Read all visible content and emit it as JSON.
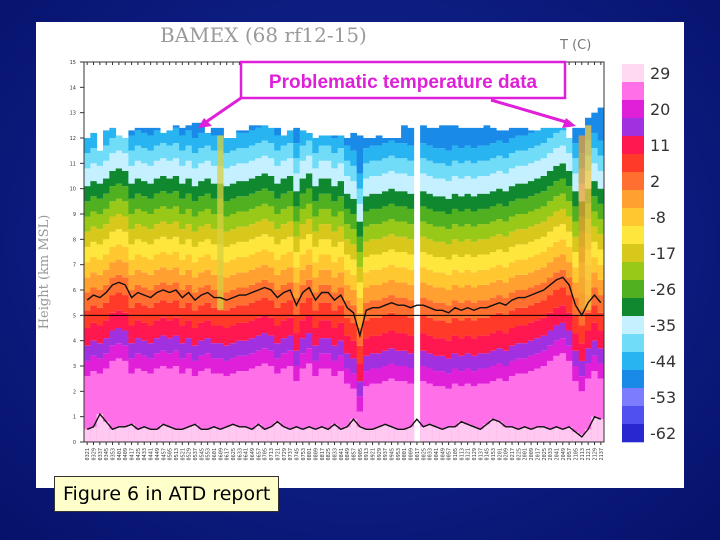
{
  "caption": "Figure 6 in ATD report",
  "chart_data": {
    "type": "heatmap",
    "title": "BAMEX (68 rf12-15)",
    "ylabel": "Height (km MSL)",
    "ylim": [
      0,
      15
    ],
    "yticks": [
      "0",
      "1",
      "2",
      "3",
      "4",
      "5",
      "6",
      "7",
      "8",
      "9",
      "10",
      "11",
      "12",
      "13",
      "14",
      "15"
    ],
    "colorbar_title": "T (C)",
    "colorbar_ticks": [
      "29",
      "20",
      "11",
      "2",
      "-8",
      "-17",
      "-26",
      "-35",
      "-44",
      "-53",
      "-62"
    ],
    "colorbar_colors": [
      "#ffd8f2",
      "#ff70e8",
      "#e020d8",
      "#a030e0",
      "#ff1850",
      "#ff3a28",
      "#ff7030",
      "#ffa030",
      "#ffc830",
      "#ffe63c",
      "#d8c81c",
      "#98c818",
      "#50b020",
      "#108830",
      "#c4f0ff",
      "#70dcf8",
      "#28b4f0",
      "#1a8ae8",
      "#7c7cff",
      "#5050f0",
      "#2828d0"
    ],
    "annotation": "Problematic temperature data",
    "grid": false,
    "x_tick_labels": [
      "0321",
      "0329",
      "0337",
      "0345",
      "0353",
      "0401",
      "0409",
      "0417",
      "0425",
      "0433",
      "0441",
      "0449",
      "0457",
      "0505",
      "0513",
      "0521",
      "0529",
      "0537",
      "0545",
      "0553",
      "0601",
      "0609",
      "0617",
      "0625",
      "0633",
      "0641",
      "0649",
      "0657",
      "0705",
      "0713",
      "0721",
      "0729",
      "0737",
      "0745",
      "0753",
      "0801",
      "0809",
      "0817",
      "0825",
      "0833",
      "0841",
      "0849",
      "0857",
      "0905",
      "0913",
      "0921",
      "0929",
      "0937",
      "0945",
      "0953",
      "0001",
      "0009",
      "0017",
      "0025",
      "0033",
      "0041",
      "0049",
      "0057",
      "0105",
      "0113",
      "0121",
      "0129",
      "0137",
      "0145",
      "0153",
      "0201",
      "0209",
      "0217",
      "0225",
      "2001",
      "2009",
      "2017",
      "2025",
      "2033",
      "2041",
      "2049",
      "2057",
      "2105",
      "2113",
      "2121",
      "2129",
      "2137"
    ],
    "series": [
      {
        "kind": "tropopause-line",
        "values": [
          5.6,
          5.8,
          5.7,
          5.9,
          6.2,
          6.3,
          6.2,
          5.7,
          5.9,
          5.8,
          5.7,
          5.9,
          6.0,
          5.9,
          6.0,
          5.7,
          5.9,
          5.6,
          5.8,
          5.9,
          5.7,
          5.7,
          5.6,
          5.7,
          5.8,
          5.8,
          5.9,
          6.0,
          6.1,
          6.0,
          5.7,
          5.9,
          6.0,
          5.4,
          5.9,
          6.1,
          5.6,
          5.9,
          5.9,
          5.6,
          5.8,
          5.3,
          5.1,
          4.2,
          5.2,
          5.3,
          5.3,
          5.4,
          5.5,
          5.4,
          5.4,
          5.3,
          5.4,
          5.4,
          5.3,
          5.2,
          5.2,
          5.1,
          5.3,
          5.2,
          5.3,
          5.2,
          5.3,
          5.3,
          5.4,
          5.5,
          5.4,
          5.6,
          5.7,
          5.7,
          5.8,
          5.9,
          6.0,
          6.2,
          6.4,
          6.5,
          6.2,
          5.4,
          5.0,
          5.5,
          5.8,
          5.5
        ]
      },
      {
        "kind": "lower-line",
        "values": [
          0.5,
          0.6,
          1.1,
          0.8,
          0.5,
          0.6,
          0.6,
          0.7,
          0.5,
          0.6,
          0.5,
          0.5,
          0.7,
          0.6,
          0.5,
          0.5,
          0.6,
          0.7,
          0.5,
          0.5,
          0.6,
          0.5,
          0.6,
          0.7,
          0.6,
          0.6,
          0.5,
          0.7,
          0.5,
          0.6,
          0.8,
          0.6,
          0.5,
          0.6,
          0.5,
          0.6,
          0.5,
          0.6,
          0.5,
          0.7,
          0.5,
          0.6,
          0.9,
          0.6,
          0.5,
          0.5,
          0.6,
          0.7,
          0.6,
          0.5,
          0.5,
          0.6,
          0.9,
          0.6,
          0.7,
          0.6,
          0.5,
          0.6,
          0.6,
          0.8,
          0.7,
          0.6,
          0.5,
          0.7,
          0.9,
          0.8,
          0.6,
          0.6,
          0.5,
          0.6,
          0.5,
          0.6,
          0.6,
          0.5,
          0.6,
          0.5,
          0.6,
          0.4,
          0.2,
          0.5,
          1.0,
          0.9
        ]
      },
      {
        "kind": "column-top",
        "values": [
          12.0,
          12.2,
          11.5,
          12.3,
          12.4,
          12.1,
          12.0,
          12.3,
          12.4,
          12.4,
          12.4,
          12.4,
          12.2,
          12.3,
          12.5,
          12.4,
          12.5,
          12.6,
          12.6,
          12.2,
          12.4,
          12.4,
          12.0,
          12.0,
          12.3,
          12.3,
          12.5,
          12.5,
          12.5,
          12.4,
          12.4,
          12.1,
          12.3,
          12.4,
          12.3,
          12.2,
          12.0,
          12.1,
          12.1,
          12.1,
          12.1,
          12.0,
          12.2,
          12.1,
          12.0,
          12.0,
          12.1,
          12.0,
          12.0,
          12.0,
          12.5,
          12.4,
          12.5,
          12.5,
          12.4,
          12.4,
          12.5,
          12.5,
          12.5,
          12.4,
          12.4,
          12.4,
          12.4,
          12.5,
          12.4,
          12.3,
          12.3,
          12.4,
          12.4,
          12.4,
          12.3,
          12.3,
          12.4,
          12.4,
          12.4,
          12.4,
          12.0,
          12.4,
          12.4,
          12.8,
          13.0,
          13.2
        ]
      }
    ]
  }
}
